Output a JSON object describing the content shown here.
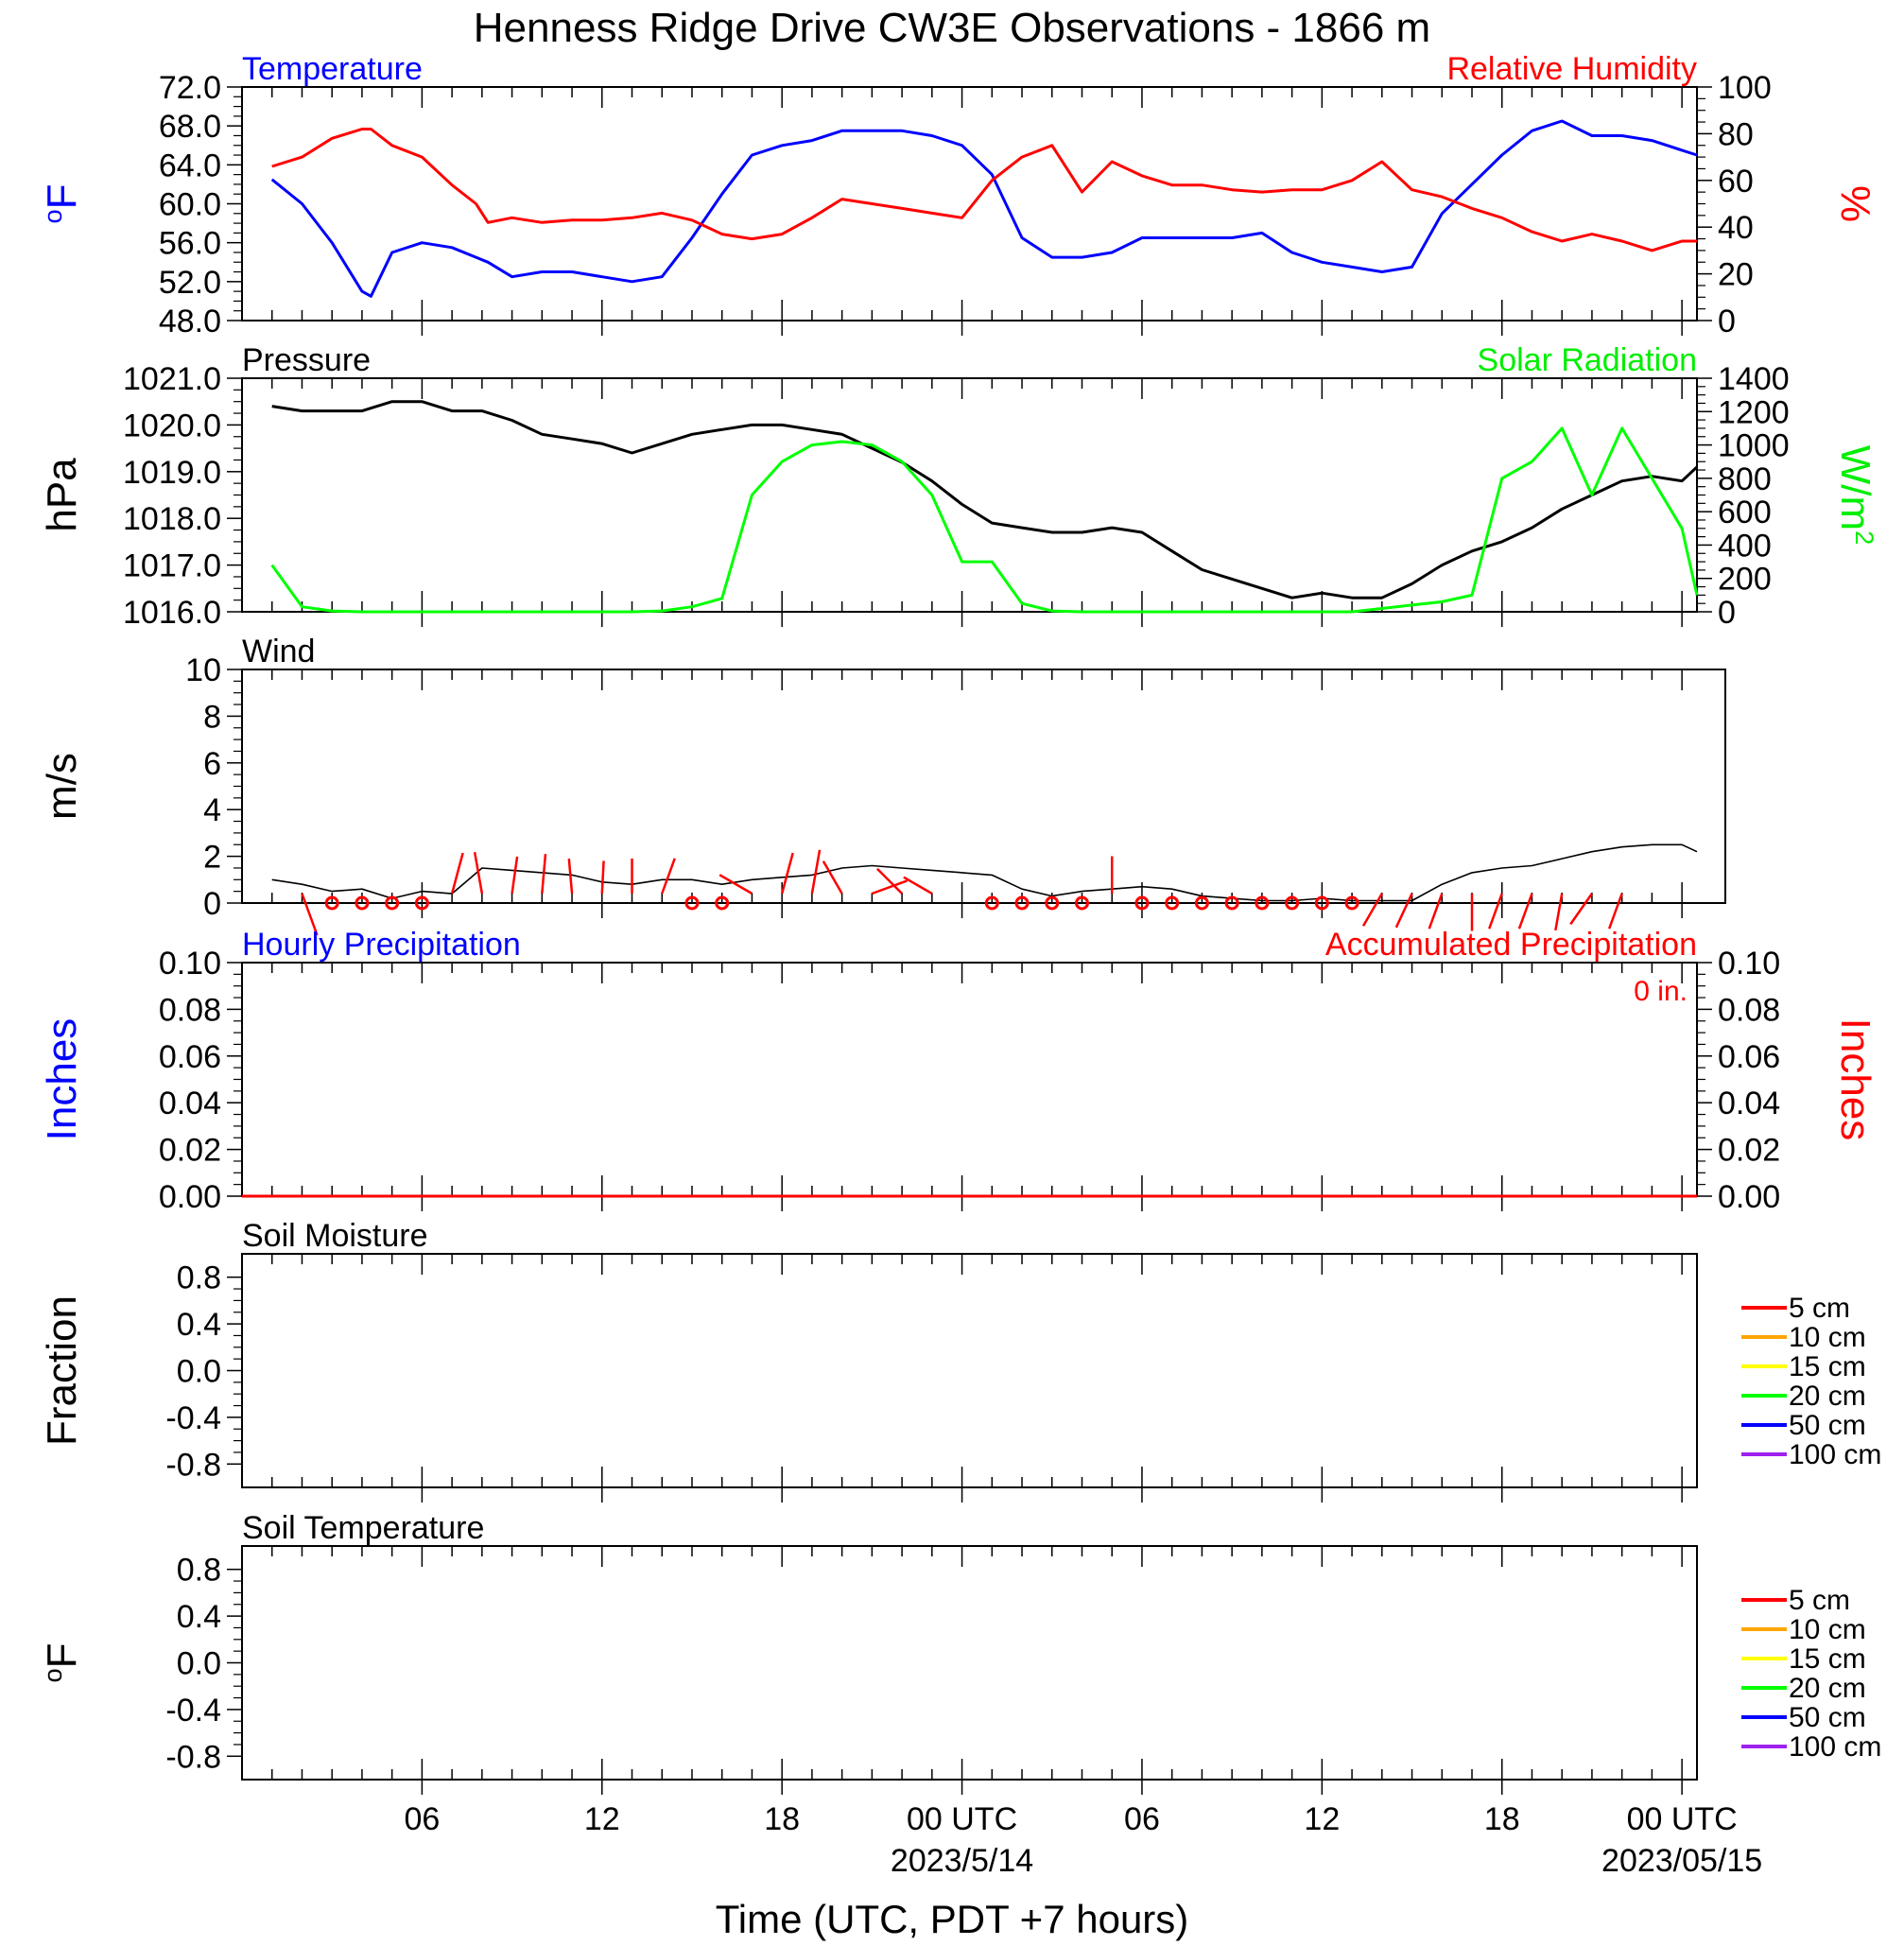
{
  "title": "Henness Ridge Drive CW3E Observations - 1866 m",
  "x_axis": {
    "label": "Time (UTC, PDT +7 hours)",
    "ticks": [
      "06",
      "12",
      "18",
      "00 UTC",
      "06",
      "12",
      "18",
      "00 UTC"
    ],
    "dates": [
      "2023/5/14",
      "2023/05/15"
    ]
  },
  "chart_data": [
    {
      "type": "line",
      "panel": "temperature-humidity",
      "title_left": "Temperature",
      "title_right": "Relative Humidity",
      "ylabel_left": "oF",
      "ylabel_right": "%",
      "ylim_left": [
        48,
        72
      ],
      "ylim_right": [
        0,
        100
      ],
      "yticks_left": [
        "48.0",
        "52.0",
        "56.0",
        "60.0",
        "64.0",
        "68.0",
        "72.0"
      ],
      "yticks_right": [
        "0",
        "20",
        "40",
        "60",
        "80",
        "100"
      ],
      "x_hours": [
        1,
        2,
        3,
        4,
        4.3,
        5,
        6,
        7,
        7.8,
        8.2,
        9,
        10,
        11,
        12,
        13,
        14,
        15,
        16,
        17,
        18,
        19,
        20,
        21,
        22,
        23,
        24,
        25,
        26,
        27,
        28,
        29,
        30,
        31,
        32,
        33,
        34,
        35,
        36,
        37,
        38,
        39,
        40,
        41,
        42,
        43,
        44,
        45,
        46,
        47,
        48,
        48.5
      ],
      "series": [
        {
          "name": "Temperature",
          "axis": "left",
          "color": "#0000ff",
          "values": [
            62.5,
            60.0,
            56.0,
            51.0,
            50.5,
            55.0,
            56.0,
            55.5,
            54.5,
            54.0,
            52.5,
            53.0,
            53.0,
            52.5,
            52.0,
            52.5,
            56.5,
            61.0,
            65.0,
            66.0,
            66.5,
            67.5,
            67.5,
            67.5,
            67.0,
            66.0,
            63.0,
            56.5,
            54.5,
            54.5,
            55.0,
            56.5,
            56.5,
            56.5,
            56.5,
            57.0,
            55.0,
            54.0,
            53.5,
            53.0,
            53.5,
            59.0,
            62.0,
            65.0,
            67.5,
            68.5,
            67.0,
            67.0,
            66.5,
            65.5,
            65.0
          ]
        },
        {
          "name": "Relative Humidity",
          "axis": "right",
          "color": "#ff0000",
          "values": [
            66,
            70,
            78,
            82,
            82,
            75,
            70,
            58,
            50,
            42,
            44,
            42,
            43,
            43,
            44,
            46,
            43,
            37,
            35,
            37,
            44,
            52,
            50,
            48,
            46,
            44,
            60,
            70,
            75,
            55,
            68,
            62,
            58,
            58,
            56,
            55,
            56,
            56,
            60,
            68,
            56,
            53,
            48,
            44,
            38,
            34,
            37,
            34,
            30,
            34,
            34
          ]
        }
      ]
    },
    {
      "type": "line",
      "panel": "pressure-solar",
      "title_left": "Pressure",
      "title_right": "Solar Radiation",
      "ylabel_left": "hPa",
      "ylabel_right": "W/m2",
      "ylim_left": [
        1016,
        1021
      ],
      "ylim_right": [
        0,
        1400
      ],
      "yticks_left": [
        "1016.0",
        "1017.0",
        "1018.0",
        "1019.0",
        "1020.0",
        "1021.0"
      ],
      "yticks_right": [
        "0",
        "200",
        "400",
        "600",
        "800",
        "1000",
        "1200",
        "1400"
      ],
      "x_hours": [
        1,
        2,
        3,
        4,
        5,
        6,
        7,
        8,
        9,
        10,
        11,
        12,
        13,
        14,
        15,
        16,
        17,
        18,
        19,
        20,
        21,
        22,
        23,
        24,
        25,
        26,
        27,
        28,
        29,
        30,
        31,
        32,
        33,
        34,
        35,
        36,
        37,
        38,
        39,
        40,
        41,
        42,
        43,
        44,
        45,
        46,
        47,
        48,
        48.5
      ],
      "series": [
        {
          "name": "Pressure",
          "axis": "left",
          "color": "#000000",
          "values": [
            1020.4,
            1020.3,
            1020.3,
            1020.3,
            1020.5,
            1020.5,
            1020.3,
            1020.3,
            1020.1,
            1019.8,
            1019.7,
            1019.6,
            1019.4,
            1019.6,
            1019.8,
            1019.9,
            1020.0,
            1020.0,
            1019.9,
            1019.8,
            1019.5,
            1019.2,
            1018.8,
            1018.3,
            1017.9,
            1017.8,
            1017.7,
            1017.7,
            1017.8,
            1017.7,
            1017.3,
            1016.9,
            1016.7,
            1016.5,
            1016.3,
            1016.4,
            1016.3,
            1016.3,
            1016.6,
            1017.0,
            1017.3,
            1017.5,
            1017.8,
            1018.2,
            1018.5,
            1018.8,
            1018.9,
            1018.8,
            1019.1
          ]
        },
        {
          "name": "Solar Radiation",
          "axis": "right",
          "color": "#00ff00",
          "values": [
            280,
            30,
            5,
            0,
            0,
            0,
            0,
            0,
            0,
            0,
            0,
            0,
            0,
            5,
            30,
            80,
            700,
            900,
            1000,
            1020,
            1000,
            900,
            700,
            300,
            300,
            50,
            5,
            0,
            0,
            0,
            0,
            0,
            0,
            0,
            0,
            0,
            0,
            20,
            40,
            60,
            100,
            800,
            900,
            1100,
            700,
            1100,
            800,
            500,
            100
          ]
        }
      ]
    },
    {
      "type": "line",
      "panel": "wind",
      "title_left": "Wind",
      "ylabel_left": "m/s",
      "ylim_left": [
        0,
        10
      ],
      "yticks_left": [
        "0",
        "2",
        "4",
        "6",
        "8",
        "10"
      ],
      "x_hours": [
        1,
        2,
        3,
        4,
        5,
        6,
        7,
        8,
        9,
        10,
        11,
        12,
        13,
        14,
        15,
        16,
        17,
        18,
        19,
        20,
        21,
        22,
        23,
        24,
        25,
        26,
        27,
        28,
        29,
        30,
        31,
        32,
        33,
        34,
        35,
        36,
        37,
        38,
        39,
        40,
        41,
        42,
        43,
        44,
        45,
        46,
        47,
        48,
        48.5
      ],
      "series": [
        {
          "name": "Wind Speed",
          "axis": "left",
          "color": "#000000",
          "values": [
            1.0,
            0.8,
            0.5,
            0.6,
            0.2,
            0.5,
            0.4,
            1.5,
            1.4,
            1.3,
            1.2,
            0.9,
            0.8,
            1.0,
            1.0,
            0.8,
            1.0,
            1.1,
            1.2,
            1.5,
            1.6,
            1.5,
            1.4,
            1.3,
            1.2,
            0.6,
            0.3,
            0.5,
            0.6,
            0.7,
            0.6,
            0.3,
            0.2,
            0.1,
            0.1,
            0.2,
            0.1,
            0.1,
            0.1,
            0.8,
            1.3,
            1.5,
            1.6,
            1.9,
            2.2,
            2.4,
            2.5,
            2.5,
            2.2
          ]
        }
      ],
      "barbs": [
        {
          "h": 2,
          "calm": false,
          "angle": 160,
          "len": 1.9
        },
        {
          "h": 3,
          "calm": true
        },
        {
          "h": 4,
          "calm": true
        },
        {
          "h": 5,
          "calm": true
        },
        {
          "h": 6,
          "calm": true
        },
        {
          "h": 7,
          "calm": false,
          "angle": 15,
          "len": 1.8
        },
        {
          "h": 8,
          "calm": false,
          "angle": -10,
          "len": 1.8
        },
        {
          "h": 9,
          "calm": false,
          "angle": 8,
          "len": 1.6
        },
        {
          "h": 10,
          "calm": false,
          "angle": 5,
          "len": 1.7
        },
        {
          "h": 11,
          "calm": false,
          "angle": -5,
          "len": 1.5
        },
        {
          "h": 12,
          "calm": false,
          "angle": 3,
          "len": 1.4
        },
        {
          "h": 13,
          "calm": false,
          "angle": 0,
          "len": 1.5
        },
        {
          "h": 14,
          "calm": false,
          "angle": 20,
          "len": 1.6
        },
        {
          "h": 15,
          "calm": true
        },
        {
          "h": 16,
          "calm": true
        },
        {
          "h": 17,
          "calm": false,
          "angle": -60,
          "len": 1.6
        },
        {
          "h": 18,
          "calm": false,
          "angle": 15,
          "len": 1.8
        },
        {
          "h": 19,
          "calm": false,
          "angle": 10,
          "len": 1.9
        },
        {
          "h": 20,
          "calm": false,
          "angle": -30,
          "len": 1.6
        },
        {
          "h": 21,
          "calm": false,
          "angle": 70,
          "len": 1.6
        },
        {
          "h": 22,
          "calm": false,
          "angle": -45,
          "len": 1.5
        },
        {
          "h": 23,
          "calm": false,
          "angle": -60,
          "len": 1.4
        },
        {
          "h": 25,
          "calm": true
        },
        {
          "h": 26,
          "calm": true
        },
        {
          "h": 27,
          "calm": true
        },
        {
          "h": 28,
          "calm": true
        },
        {
          "h": 29,
          "calm": false,
          "angle": 0,
          "len": 1.6
        },
        {
          "h": 30,
          "calm": true
        },
        {
          "h": 31,
          "calm": true
        },
        {
          "h": 32,
          "calm": true
        },
        {
          "h": 33,
          "calm": true
        },
        {
          "h": 34,
          "calm": true
        },
        {
          "h": 35,
          "calm": true
        },
        {
          "h": 36,
          "calm": true
        },
        {
          "h": 37,
          "calm": true
        },
        {
          "h": 38,
          "calm": false,
          "angle": -150,
          "len": 1.6
        },
        {
          "h": 39,
          "calm": false,
          "angle": -155,
          "len": 1.6
        },
        {
          "h": 40,
          "calm": false,
          "angle": -160,
          "len": 1.6
        },
        {
          "h": 41,
          "calm": false,
          "angle": 180,
          "len": 1.6
        },
        {
          "h": 42,
          "calm": false,
          "angle": -160,
          "len": 1.6
        },
        {
          "h": 43,
          "calm": false,
          "angle": -160,
          "len": 1.6
        },
        {
          "h": 44,
          "calm": false,
          "angle": -170,
          "len": 1.6
        },
        {
          "h": 45,
          "calm": false,
          "angle": -145,
          "len": 1.6
        },
        {
          "h": 46,
          "calm": false,
          "angle": -160,
          "len": 1.6
        }
      ]
    },
    {
      "type": "line",
      "panel": "precipitation",
      "title_left": "Hourly Precipitation",
      "title_right": "Accumulated Precipitation",
      "annotation": "0 in.",
      "ylabel_left": "Inches",
      "ylabel_right": "Inches",
      "ylim_left": [
        0,
        0.1
      ],
      "ylim_right": [
        0,
        0.1
      ],
      "yticks_left": [
        "0.00",
        "0.02",
        "0.04",
        "0.06",
        "0.08",
        "0.10"
      ],
      "yticks_right": [
        "0.00",
        "0.02",
        "0.04",
        "0.06",
        "0.08",
        "0.10"
      ],
      "x_hours": [
        0,
        48.5
      ],
      "series": [
        {
          "name": "Accumulated Precipitation",
          "axis": "right",
          "color": "#ff0000",
          "values": [
            0,
            0
          ]
        }
      ]
    },
    {
      "type": "line",
      "panel": "soil-moisture",
      "title_left": "Soil Moisture",
      "ylabel_left": "Fraction",
      "ylim_left": [
        -1,
        1
      ],
      "yticks_left": [
        "-0.8",
        "-0.4",
        "0.0",
        "0.4",
        "0.8"
      ],
      "legend": [
        {
          "label": "5 cm",
          "color": "#ff0000"
        },
        {
          "label": "10 cm",
          "color": "#ffa500"
        },
        {
          "label": "15 cm",
          "color": "#ffff00"
        },
        {
          "label": "20 cm",
          "color": "#00ff00"
        },
        {
          "label": "50 cm",
          "color": "#0000ff"
        },
        {
          "label": "100 cm",
          "color": "#a020f0"
        }
      ]
    },
    {
      "type": "line",
      "panel": "soil-temperature",
      "title_left": "Soil Temperature",
      "ylabel_left": "oF",
      "ylim_left": [
        -1,
        1
      ],
      "yticks_left": [
        "-0.8",
        "-0.4",
        "0.0",
        "0.4",
        "0.8"
      ],
      "legend": [
        {
          "label": "5 cm",
          "color": "#ff0000"
        },
        {
          "label": "10 cm",
          "color": "#ffa500"
        },
        {
          "label": "15 cm",
          "color": "#ffff00"
        },
        {
          "label": "20 cm",
          "color": "#00ff00"
        },
        {
          "label": "50 cm",
          "color": "#0000ff"
        },
        {
          "label": "100 cm",
          "color": "#a020f0"
        }
      ]
    }
  ]
}
